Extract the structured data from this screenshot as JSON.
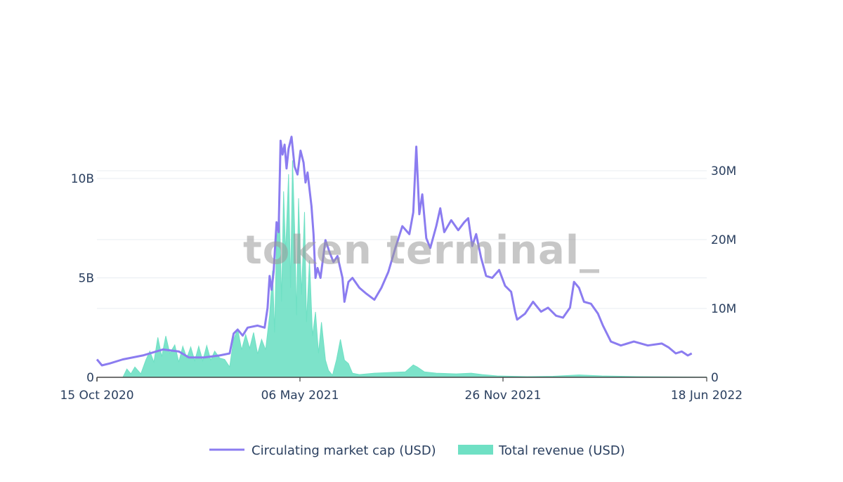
{
  "watermark": "token terminal_",
  "colors": {
    "market_cap": "#8b7cf0",
    "revenue": "#6fe0c4",
    "grid": "#e8ecf2",
    "axis": "#444444"
  },
  "chart_data": {
    "type": "line+area",
    "xlabel": "",
    "x_ticks": [
      "15 Oct 2020",
      "06 May 2021",
      "26 Nov 2021",
      "18 Jun 2022"
    ],
    "y_left_ticks": [
      "0",
      "5B",
      "10B"
    ],
    "y_right_ticks": [
      "0",
      "10M",
      "20M",
      "30M"
    ],
    "y_left_range": [
      0,
      10000000000
    ],
    "y_right_range": [
      0,
      30000000
    ],
    "x_range": [
      "2020-10-15",
      "2022-06-18"
    ],
    "legend": "bottom-center",
    "series": [
      {
        "name": "Circulating market cap (USD)",
        "kind": "line",
        "axis": "left",
        "points": [
          [
            "2020-10-15",
            900000000.0
          ],
          [
            "2020-10-20",
            600000000.0
          ],
          [
            "2020-10-28",
            700000000.0
          ],
          [
            "2020-11-10",
            900000000.0
          ],
          [
            "2020-11-30",
            1100000000.0
          ],
          [
            "2020-12-20",
            1400000000.0
          ],
          [
            "2021-01-05",
            1300000000.0
          ],
          [
            "2021-01-15",
            1000000000.0
          ],
          [
            "2021-01-30",
            1000000000.0
          ],
          [
            "2021-02-15",
            1100000000.0
          ],
          [
            "2021-02-25",
            1200000000.0
          ],
          [
            "2021-03-01",
            2200000000.0
          ],
          [
            "2021-03-05",
            2400000000.0
          ],
          [
            "2021-03-10",
            2100000000.0
          ],
          [
            "2021-03-15",
            2500000000.0
          ],
          [
            "2021-03-25",
            2600000000.0
          ],
          [
            "2021-04-01",
            2500000000.0
          ],
          [
            "2021-04-04",
            3500000000.0
          ],
          [
            "2021-04-06",
            5100000000.0
          ],
          [
            "2021-04-08",
            4400000000.0
          ],
          [
            "2021-04-10",
            5300000000.0
          ],
          [
            "2021-04-13",
            7800000000.0
          ],
          [
            "2021-04-15",
            7300000000.0
          ],
          [
            "2021-04-17",
            11900000000.0
          ],
          [
            "2021-04-19",
            11200000000.0
          ],
          [
            "2021-04-21",
            11700000000.0
          ],
          [
            "2021-04-23",
            10500000000.0
          ],
          [
            "2021-04-25",
            11500000000.0
          ],
          [
            "2021-04-28",
            12100000000.0
          ],
          [
            "2021-05-01",
            10600000000.0
          ],
          [
            "2021-05-04",
            10200000000.0
          ],
          [
            "2021-05-07",
            11400000000.0
          ],
          [
            "2021-05-10",
            10800000000.0
          ],
          [
            "2021-05-12",
            9800000000.0
          ],
          [
            "2021-05-14",
            10300000000.0
          ],
          [
            "2021-05-18",
            8600000000.0
          ],
          [
            "2021-05-20",
            7200000000.0
          ],
          [
            "2021-05-22",
            5000000000.0
          ],
          [
            "2021-05-24",
            5500000000.0
          ],
          [
            "2021-05-27",
            5000000000.0
          ],
          [
            "2021-06-01",
            6900000000.0
          ],
          [
            "2021-06-05",
            6300000000.0
          ],
          [
            "2021-06-09",
            5800000000.0
          ],
          [
            "2021-06-13",
            6100000000.0
          ],
          [
            "2021-06-18",
            5000000000.0
          ],
          [
            "2021-06-20",
            3800000000.0
          ],
          [
            "2021-06-24",
            4800000000.0
          ],
          [
            "2021-06-28",
            5000000000.0
          ],
          [
            "2021-07-05",
            4500000000.0
          ],
          [
            "2021-07-12",
            4200000000.0
          ],
          [
            "2021-07-20",
            3900000000.0
          ],
          [
            "2021-07-27",
            4500000000.0
          ],
          [
            "2021-08-03",
            5300000000.0
          ],
          [
            "2021-08-10",
            6500000000.0
          ],
          [
            "2021-08-17",
            7600000000.0
          ],
          [
            "2021-08-24",
            7200000000.0
          ],
          [
            "2021-08-28",
            8300000000.0
          ],
          [
            "2021-08-31",
            11600000000.0
          ],
          [
            "2021-09-03",
            8200000000.0
          ],
          [
            "2021-09-06",
            9200000000.0
          ],
          [
            "2021-09-10",
            7000000000.0
          ],
          [
            "2021-09-14",
            6500000000.0
          ],
          [
            "2021-09-20",
            7600000000.0
          ],
          [
            "2021-09-24",
            8500000000.0
          ],
          [
            "2021-09-28",
            7300000000.0
          ],
          [
            "2021-10-05",
            7900000000.0
          ],
          [
            "2021-10-12",
            7400000000.0
          ],
          [
            "2021-10-18",
            7800000000.0
          ],
          [
            "2021-10-22",
            8000000000.0
          ],
          [
            "2021-10-26",
            6600000000.0
          ],
          [
            "2021-10-30",
            7200000000.0
          ],
          [
            "2021-11-04",
            6000000000.0
          ],
          [
            "2021-11-09",
            5100000000.0
          ],
          [
            "2021-11-15",
            5000000000.0
          ],
          [
            "2021-11-22",
            5400000000.0
          ],
          [
            "2021-11-28",
            4600000000.0
          ],
          [
            "2021-12-04",
            4300000000.0
          ],
          [
            "2021-12-08",
            3300000000.0
          ],
          [
            "2021-12-10",
            2900000000.0
          ],
          [
            "2021-12-18",
            3200000000.0
          ],
          [
            "2021-12-26",
            3800000000.0
          ],
          [
            "2022-01-03",
            3300000000.0
          ],
          [
            "2022-01-10",
            3500000000.0
          ],
          [
            "2022-01-18",
            3100000000.0
          ],
          [
            "2022-01-25",
            3000000000.0
          ],
          [
            "2022-02-01",
            3500000000.0
          ],
          [
            "2022-02-05",
            4800000000.0
          ],
          [
            "2022-02-10",
            4500000000.0
          ],
          [
            "2022-02-15",
            3800000000.0
          ],
          [
            "2022-02-22",
            3700000000.0
          ],
          [
            "2022-03-01",
            3200000000.0
          ],
          [
            "2022-03-06",
            2600000000.0
          ],
          [
            "2022-03-14",
            1800000000.0
          ],
          [
            "2022-03-24",
            1600000000.0
          ],
          [
            "2022-04-06",
            1800000000.0
          ],
          [
            "2022-04-20",
            1600000000.0
          ],
          [
            "2022-05-04",
            1700000000.0
          ],
          [
            "2022-05-11",
            1500000000.0
          ],
          [
            "2022-05-18",
            1200000000.0
          ],
          [
            "2022-05-24",
            1300000000.0
          ],
          [
            "2022-05-30",
            1100000000.0
          ],
          [
            "2022-06-03",
            1200000000.0
          ]
        ]
      },
      {
        "name": "Total revenue (USD)",
        "kind": "area",
        "axis": "right",
        "points": [
          [
            "2020-10-15",
            0
          ],
          [
            "2020-11-10",
            0
          ],
          [
            "2020-11-14",
            1200000.0
          ],
          [
            "2020-11-18",
            500000.0
          ],
          [
            "2020-11-22",
            1500000.0
          ],
          [
            "2020-11-28",
            500000.0
          ],
          [
            "2020-12-03",
            2500000.0
          ],
          [
            "2020-12-07",
            3800000.0
          ],
          [
            "2020-12-11",
            2200000.0
          ],
          [
            "2020-12-15",
            5800000.0
          ],
          [
            "2020-12-19",
            3000000.0
          ],
          [
            "2020-12-23",
            6000000.0
          ],
          [
            "2020-12-27",
            3500000.0
          ],
          [
            "2021-01-01",
            4700000.0
          ],
          [
            "2021-01-05",
            2200000.0
          ],
          [
            "2021-01-09",
            4500000.0
          ],
          [
            "2021-01-13",
            2800000.0
          ],
          [
            "2021-01-17",
            4400000.0
          ],
          [
            "2021-01-21",
            2400000.0
          ],
          [
            "2021-01-25",
            4500000.0
          ],
          [
            "2021-01-29",
            2400000.0
          ],
          [
            "2021-02-02",
            4600000.0
          ],
          [
            "2021-02-06",
            2500000.0
          ],
          [
            "2021-02-10",
            3800000.0
          ],
          [
            "2021-02-15",
            2800000.0
          ],
          [
            "2021-02-20",
            2600000.0
          ],
          [
            "2021-02-25",
            1500000.0
          ],
          [
            "2021-03-01",
            5500000.0
          ],
          [
            "2021-03-05",
            7000000.0
          ],
          [
            "2021-03-09",
            4000000.0
          ],
          [
            "2021-03-13",
            6200000.0
          ],
          [
            "2021-03-17",
            4200000.0
          ],
          [
            "2021-03-21",
            6500000.0
          ],
          [
            "2021-03-25",
            3400000.0
          ],
          [
            "2021-03-29",
            5500000.0
          ],
          [
            "2021-04-02",
            4000000.0
          ],
          [
            "2021-04-06",
            9000000.0
          ],
          [
            "2021-04-09",
            15500000.0
          ],
          [
            "2021-04-11",
            6500000.0
          ],
          [
            "2021-04-13",
            20000000.0
          ],
          [
            "2021-04-16",
            23500000.0
          ],
          [
            "2021-04-18",
            11000000.0
          ],
          [
            "2021-04-20",
            27000000.0
          ],
          [
            "2021-04-22",
            18000000.0
          ],
          [
            "2021-04-25",
            29500000.0
          ],
          [
            "2021-04-27",
            13000000.0
          ],
          [
            "2021-04-29",
            31500000.0
          ],
          [
            "2021-05-01",
            22000000.0
          ],
          [
            "2021-05-03",
            9000000.0
          ],
          [
            "2021-05-05",
            26000000.0
          ],
          [
            "2021-05-08",
            12000000.0
          ],
          [
            "2021-05-11",
            24000000.0
          ],
          [
            "2021-05-13",
            8000000.0
          ],
          [
            "2021-05-16",
            17000000.0
          ],
          [
            "2021-05-19",
            6000000.0
          ],
          [
            "2021-05-22",
            9500000.0
          ],
          [
            "2021-05-25",
            3500000.0
          ],
          [
            "2021-05-28",
            8000000.0
          ],
          [
            "2021-06-01",
            2500000.0
          ],
          [
            "2021-06-04",
            1000000.0
          ],
          [
            "2021-06-08",
            300000.0
          ],
          [
            "2021-06-12",
            2500000.0
          ],
          [
            "2021-06-16",
            5500000.0
          ],
          [
            "2021-06-20",
            2500000.0
          ],
          [
            "2021-06-24",
            2000000.0
          ],
          [
            "2021-06-28",
            600000.0
          ],
          [
            "2021-07-05",
            400000.0
          ],
          [
            "2021-07-20",
            600000.0
          ],
          [
            "2021-08-05",
            700000.0
          ],
          [
            "2021-08-20",
            800000.0
          ],
          [
            "2021-08-28",
            1800000.0
          ],
          [
            "2021-09-01",
            1500000.0
          ],
          [
            "2021-09-08",
            800000.0
          ],
          [
            "2021-09-20",
            600000.0
          ],
          [
            "2021-10-10",
            500000.0
          ],
          [
            "2021-10-25",
            600000.0
          ],
          [
            "2021-11-05",
            400000.0
          ],
          [
            "2021-11-20",
            200000.0
          ],
          [
            "2021-12-20",
            100000.0
          ],
          [
            "2022-01-15",
            150000.0
          ],
          [
            "2022-02-10",
            350000.0
          ],
          [
            "2022-03-05",
            200000.0
          ],
          [
            "2022-04-10",
            100000.0
          ],
          [
            "2022-06-18",
            20000.0
          ]
        ]
      }
    ]
  }
}
